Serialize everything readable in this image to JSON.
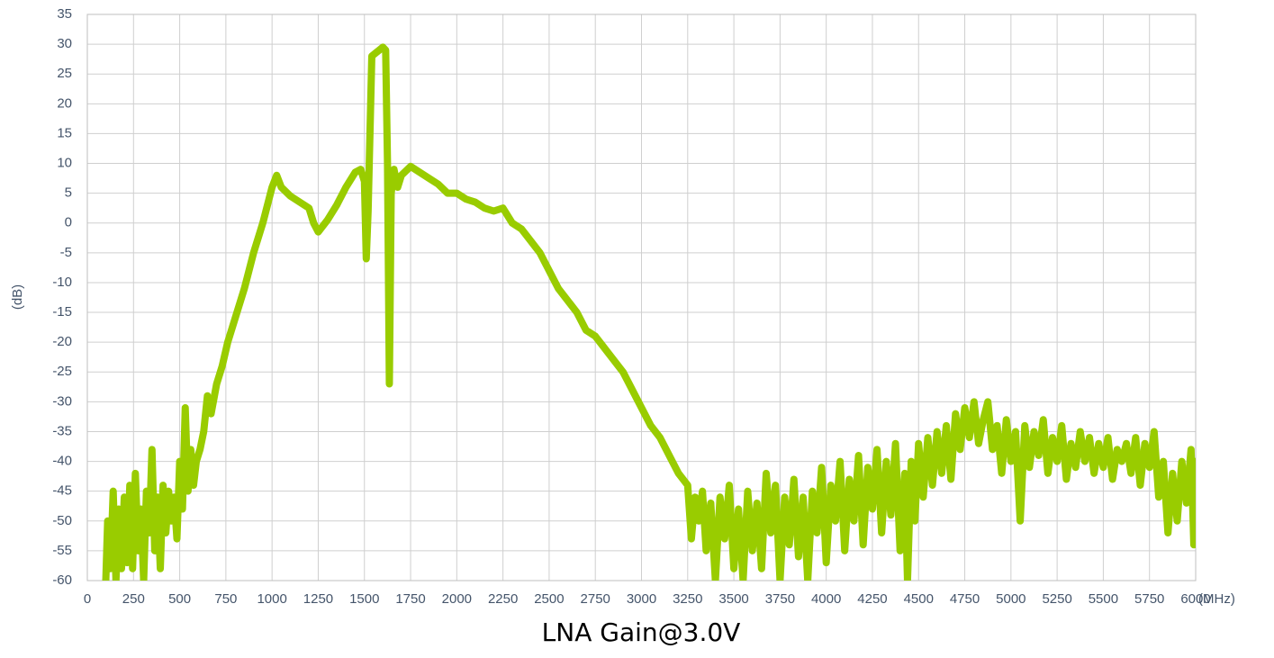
{
  "chart_data": {
    "type": "line",
    "title": "LNA Gain@3.0V",
    "x_label": "(MHz)",
    "y_label": "(dB)",
    "x": [
      100,
      110,
      125,
      140,
      155,
      170,
      185,
      200,
      215,
      230,
      245,
      260,
      275,
      290,
      305,
      320,
      335,
      350,
      365,
      380,
      395,
      410,
      425,
      440,
      455,
      470,
      485,
      500,
      515,
      530,
      545,
      560,
      575,
      590,
      610,
      630,
      650,
      670,
      700,
      730,
      760,
      800,
      850,
      900,
      950,
      1000,
      1025,
      1050,
      1100,
      1150,
      1200,
      1225,
      1250,
      1300,
      1350,
      1400,
      1450,
      1480,
      1500,
      1510,
      1520,
      1540,
      1560,
      1580,
      1600,
      1615,
      1625,
      1635,
      1645,
      1660,
      1680,
      1700,
      1750,
      1800,
      1850,
      1900,
      1950,
      2000,
      2050,
      2100,
      2150,
      2200,
      2250,
      2300,
      2350,
      2400,
      2450,
      2500,
      2550,
      2600,
      2650,
      2700,
      2750,
      2800,
      2850,
      2900,
      2950,
      3000,
      3050,
      3100,
      3150,
      3200,
      3250,
      3270,
      3290,
      3310,
      3330,
      3350,
      3375,
      3400,
      3425,
      3450,
      3475,
      3500,
      3525,
      3550,
      3575,
      3600,
      3625,
      3650,
      3675,
      3700,
      3725,
      3750,
      3775,
      3800,
      3825,
      3850,
      3875,
      3900,
      3925,
      3950,
      3975,
      4000,
      4025,
      4050,
      4075,
      4100,
      4125,
      4150,
      4175,
      4200,
      4225,
      4250,
      4275,
      4300,
      4325,
      4350,
      4375,
      4400,
      4425,
      4440,
      4460,
      4480,
      4500,
      4525,
      4550,
      4575,
      4600,
      4625,
      4650,
      4675,
      4700,
      4725,
      4750,
      4775,
      4800,
      4825,
      4850,
      4875,
      4900,
      4925,
      4950,
      4975,
      5000,
      5025,
      5050,
      5075,
      5100,
      5125,
      5150,
      5175,
      5200,
      5225,
      5250,
      5275,
      5300,
      5325,
      5350,
      5375,
      5400,
      5425,
      5450,
      5475,
      5500,
      5525,
      5550,
      5575,
      5600,
      5625,
      5650,
      5675,
      5700,
      5725,
      5750,
      5775,
      5800,
      5825,
      5850,
      5875,
      5900,
      5925,
      5950,
      5975,
      5990,
      6000
    ],
    "series": [
      {
        "name": "LNA Gain",
        "color": "#99cc00",
        "values": [
          -60,
          -50,
          -58,
          -45,
          -60,
          -48,
          -58,
          -46,
          -57,
          -44,
          -58,
          -42,
          -55,
          -48,
          -60,
          -45,
          -52,
          -38,
          -55,
          -46,
          -58,
          -44,
          -52,
          -45,
          -50,
          -46,
          -53,
          -40,
          -48,
          -31,
          -45,
          -38,
          -44,
          -40,
          -38,
          -35,
          -29,
          -32,
          -27,
          -24,
          -20,
          -16,
          -11,
          -5,
          0,
          6,
          8,
          6,
          4.5,
          3.5,
          2.5,
          0,
          -1.5,
          0.5,
          3,
          6,
          8.5,
          9,
          7,
          -6,
          2,
          28,
          28.5,
          29,
          29.5,
          29,
          10,
          -27,
          5,
          9,
          6,
          8,
          9.5,
          8.5,
          7.5,
          6.5,
          5,
          5,
          4,
          3.5,
          2.5,
          2,
          2.5,
          0,
          -1,
          -3,
          -5,
          -8,
          -11,
          -13,
          -15,
          -18,
          -19,
          -21,
          -23,
          -25,
          -28,
          -31,
          -34,
          -36,
          -39,
          -42,
          -44,
          -53,
          -46,
          -50,
          -45,
          -55,
          -47,
          -60,
          -46,
          -53,
          -44,
          -58,
          -48,
          -60,
          -45,
          -55,
          -47,
          -58,
          -42,
          -52,
          -44,
          -60,
          -46,
          -54,
          -43,
          -56,
          -46,
          -60,
          -45,
          -52,
          -41,
          -57,
          -44,
          -50,
          -40,
          -55,
          -43,
          -50,
          -39,
          -54,
          -41,
          -48,
          -38,
          -52,
          -40,
          -49,
          -37,
          -55,
          -42,
          -60,
          -40,
          -50,
          -37,
          -46,
          -36,
          -44,
          -35,
          -42,
          -34,
          -43,
          -32,
          -38,
          -31,
          -36,
          -30,
          -37,
          -33,
          -30,
          -38,
          -34,
          -42,
          -33,
          -40,
          -35,
          -50,
          -34,
          -41,
          -35,
          -39,
          -33,
          -42,
          -36,
          -40,
          -34,
          -43,
          -37,
          -41,
          -35,
          -40,
          -36,
          -42,
          -37,
          -41,
          -36,
          -43,
          -38,
          -40,
          -37,
          -42,
          -36,
          -44,
          -37,
          -41,
          -35,
          -46,
          -40,
          -52,
          -42,
          -50,
          -40,
          -47,
          -38,
          -54,
          -40
        ]
      }
    ],
    "xlim": [
      0,
      6000
    ],
    "xticks": [
      0,
      250,
      500,
      750,
      1000,
      1250,
      1500,
      1750,
      2000,
      2250,
      2500,
      2750,
      3000,
      3250,
      3500,
      3750,
      4000,
      4250,
      4500,
      4750,
      5000,
      5250,
      5500,
      5750,
      6000
    ],
    "ylim": [
      -60,
      35
    ],
    "yticks": [
      -60,
      -55,
      -50,
      -45,
      -40,
      -35,
      -30,
      -25,
      -20,
      -15,
      -10,
      -5,
      0,
      5,
      10,
      15,
      20,
      25,
      30,
      35
    ],
    "grid": true
  }
}
